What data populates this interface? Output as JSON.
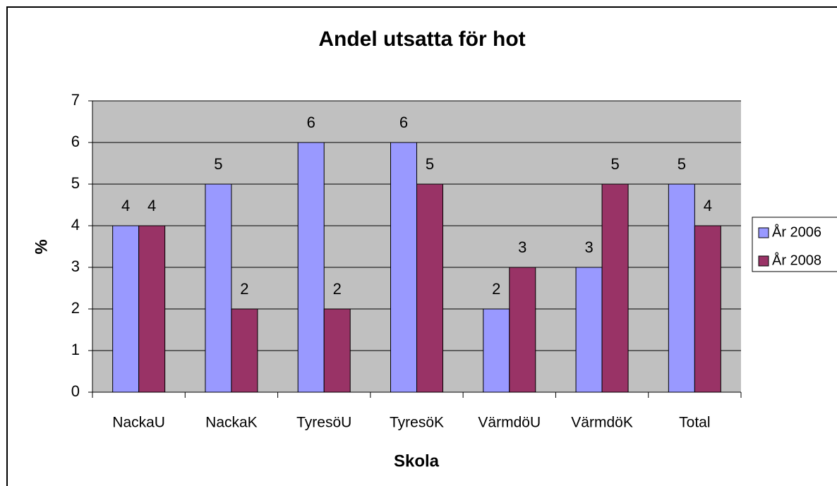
{
  "chart_data": {
    "type": "bar",
    "title": "Andel utsatta för hot",
    "x_label": "Skola",
    "y_label": "%",
    "categories": [
      "NackaU",
      "NackaK",
      "TyresöU",
      "TyresöK",
      "VärmdöU",
      "VärmdöK",
      "Total"
    ],
    "series": [
      {
        "name": "År 2006",
        "color": "#9999ff",
        "values": [
          4,
          5,
          6,
          6,
          2,
          3,
          5
        ]
      },
      {
        "name": "År 2008",
        "color": "#993366",
        "values": [
          4,
          2,
          2,
          5,
          3,
          5,
          4
        ]
      }
    ],
    "ylim": [
      0,
      7
    ],
    "yticks": [
      0,
      1,
      2,
      3,
      4,
      5,
      6,
      7
    ],
    "grid": true,
    "legend": "right"
  }
}
